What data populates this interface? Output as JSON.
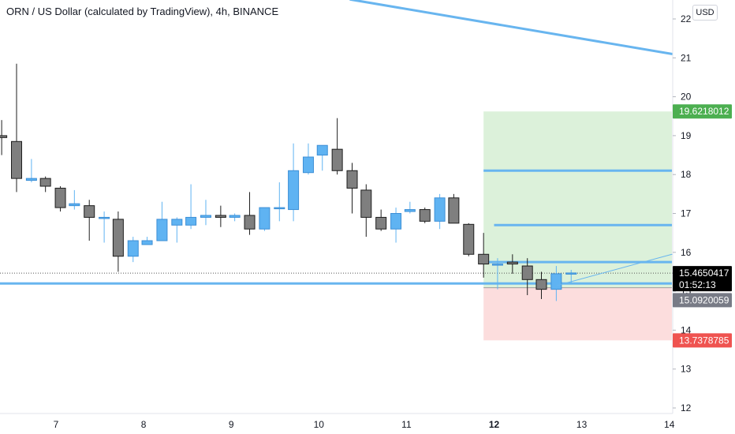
{
  "header": {
    "title": "ORN / US Dollar (calculated by TradingView), 4h, BINANCE",
    "currency_button": "USD"
  },
  "colors": {
    "up_candle": "#5fb3f2",
    "down_candle": "#7f7f7f",
    "trendline": "#68b5ef",
    "profit_zone": "#d6eed4",
    "loss_zone": "#fbd7d7",
    "target_label": "#4caf50",
    "stop_label": "#ef5350",
    "current_label": "#000000",
    "entry_label": "#787b86"
  },
  "chart_data": {
    "type": "candlestick",
    "title": "ORN / US Dollar (calculated by TradingView), 4h, BINANCE",
    "ylim": [
      11.9,
      22.5
    ],
    "y_ticks": [
      "12",
      "13",
      "14",
      "15",
      "16",
      "17",
      "18",
      "19",
      "20",
      "21",
      "22"
    ],
    "x_ticks": [
      "7",
      "8",
      "9",
      "10",
      "11",
      "12",
      "13",
      "14"
    ],
    "x_tick_bold": "12",
    "grid": false,
    "candles": [
      {
        "d": 6.38,
        "o": 19.0,
        "h": 19.4,
        "l": 18.5,
        "c": 18.95
      },
      {
        "d": 6.55,
        "o": 18.85,
        "h": 20.85,
        "l": 17.55,
        "c": 17.9
      },
      {
        "d": 6.72,
        "o": 17.85,
        "h": 18.4,
        "l": 17.8,
        "c": 17.9
      },
      {
        "d": 6.88,
        "o": 17.9,
        "h": 17.95,
        "l": 17.55,
        "c": 17.7
      },
      {
        "d": 7.05,
        "o": 17.65,
        "h": 17.7,
        "l": 17.05,
        "c": 17.15
      },
      {
        "d": 7.21,
        "o": 17.2,
        "h": 17.6,
        "l": 17.1,
        "c": 17.25
      },
      {
        "d": 7.38,
        "o": 17.2,
        "h": 17.35,
        "l": 16.3,
        "c": 16.9
      },
      {
        "d": 7.55,
        "o": 16.9,
        "h": 17.05,
        "l": 16.25,
        "c": 16.9
      },
      {
        "d": 7.71,
        "o": 16.85,
        "h": 17.05,
        "l": 15.5,
        "c": 15.9
      },
      {
        "d": 7.88,
        "o": 15.9,
        "h": 16.4,
        "l": 15.75,
        "c": 16.3
      },
      {
        "d": 8.04,
        "o": 16.2,
        "h": 16.4,
        "l": 16.2,
        "c": 16.3
      },
      {
        "d": 8.21,
        "o": 16.3,
        "h": 17.3,
        "l": 16.3,
        "c": 16.85
      },
      {
        "d": 8.38,
        "o": 16.7,
        "h": 16.9,
        "l": 16.25,
        "c": 16.85
      },
      {
        "d": 8.54,
        "o": 16.7,
        "h": 17.75,
        "l": 16.6,
        "c": 16.9
      },
      {
        "d": 8.71,
        "o": 16.9,
        "h": 17.35,
        "l": 16.7,
        "c": 16.95
      },
      {
        "d": 8.88,
        "o": 16.95,
        "h": 17.2,
        "l": 16.65,
        "c": 16.9
      },
      {
        "d": 9.04,
        "o": 16.9,
        "h": 17.0,
        "l": 16.8,
        "c": 16.95
      },
      {
        "d": 9.21,
        "o": 16.95,
        "h": 17.55,
        "l": 16.45,
        "c": 16.6
      },
      {
        "d": 9.38,
        "o": 16.6,
        "h": 17.15,
        "l": 16.55,
        "c": 17.15
      },
      {
        "d": 9.55,
        "o": 17.15,
        "h": 17.8,
        "l": 16.8,
        "c": 17.15
      },
      {
        "d": 9.71,
        "o": 17.1,
        "h": 18.8,
        "l": 16.8,
        "c": 18.1
      },
      {
        "d": 9.88,
        "o": 18.05,
        "h": 18.8,
        "l": 18.0,
        "c": 18.45
      },
      {
        "d": 10.04,
        "o": 18.5,
        "h": 18.75,
        "l": 18.1,
        "c": 18.75
      },
      {
        "d": 10.21,
        "o": 18.65,
        "h": 19.45,
        "l": 18.0,
        "c": 18.1
      },
      {
        "d": 10.38,
        "o": 18.1,
        "h": 18.3,
        "l": 17.0,
        "c": 17.65
      },
      {
        "d": 10.54,
        "o": 17.6,
        "h": 17.75,
        "l": 16.4,
        "c": 16.9
      },
      {
        "d": 10.71,
        "o": 16.9,
        "h": 17.1,
        "l": 16.55,
        "c": 16.6
      },
      {
        "d": 10.88,
        "o": 16.6,
        "h": 17.15,
        "l": 16.25,
        "c": 17.0
      },
      {
        "d": 11.04,
        "o": 17.05,
        "h": 17.3,
        "l": 17.0,
        "c": 17.1
      },
      {
        "d": 11.21,
        "o": 17.1,
        "h": 17.15,
        "l": 16.75,
        "c": 16.8
      },
      {
        "d": 11.38,
        "o": 16.8,
        "h": 17.5,
        "l": 16.6,
        "c": 17.4
      },
      {
        "d": 11.54,
        "o": 17.4,
        "h": 17.5,
        "l": 16.75,
        "c": 16.75
      },
      {
        "d": 11.71,
        "o": 16.72,
        "h": 16.75,
        "l": 15.9,
        "c": 15.95
      },
      {
        "d": 11.88,
        "o": 15.95,
        "h": 16.5,
        "l": 15.35,
        "c": 15.7
      },
      {
        "d": 12.04,
        "o": 15.7,
        "h": 15.85,
        "l": 15.05,
        "c": 15.7
      },
      {
        "d": 12.21,
        "o": 15.75,
        "h": 15.95,
        "l": 15.45,
        "c": 15.7
      },
      {
        "d": 12.38,
        "o": 15.65,
        "h": 15.85,
        "l": 14.9,
        "c": 15.3
      },
      {
        "d": 12.54,
        "o": 15.3,
        "h": 15.5,
        "l": 14.8,
        "c": 15.05
      },
      {
        "d": 12.71,
        "o": 15.05,
        "h": 15.65,
        "l": 14.75,
        "c": 15.45
      },
      {
        "d": 12.88,
        "o": 15.45,
        "h": 15.55,
        "l": 15.2,
        "c": 15.47
      }
    ],
    "horizontal_lines": [
      {
        "price": 15.2,
        "x_from": 5.7,
        "x_to": 14.03
      },
      {
        "price": 18.1,
        "x_from": 11.88,
        "x_to": 14.03
      },
      {
        "price": 16.7,
        "x_from": 12.0,
        "x_to": 14.03
      },
      {
        "price": 15.75,
        "x_from": 11.88,
        "x_to": 14.03
      }
    ],
    "trendlines": [
      {
        "from": [
          10.36,
          22.5
        ],
        "to": [
          14.03,
          21.1
        ],
        "width": 3
      },
      {
        "from": [
          12.72,
          15.15
        ],
        "to": [
          14.03,
          15.95
        ],
        "width": 1
      }
    ],
    "position_tool": {
      "x_from": 11.88,
      "x_to": 14.03,
      "entry": 15.0920059,
      "target": 19.6218012,
      "stop": 13.7378785,
      "current": 15.4650417
    },
    "price_labels": {
      "target": "19.6218012",
      "current": "15.4650417",
      "countdown": "01:52:13",
      "entry": "15.0920059",
      "stop": "13.7378785"
    }
  }
}
